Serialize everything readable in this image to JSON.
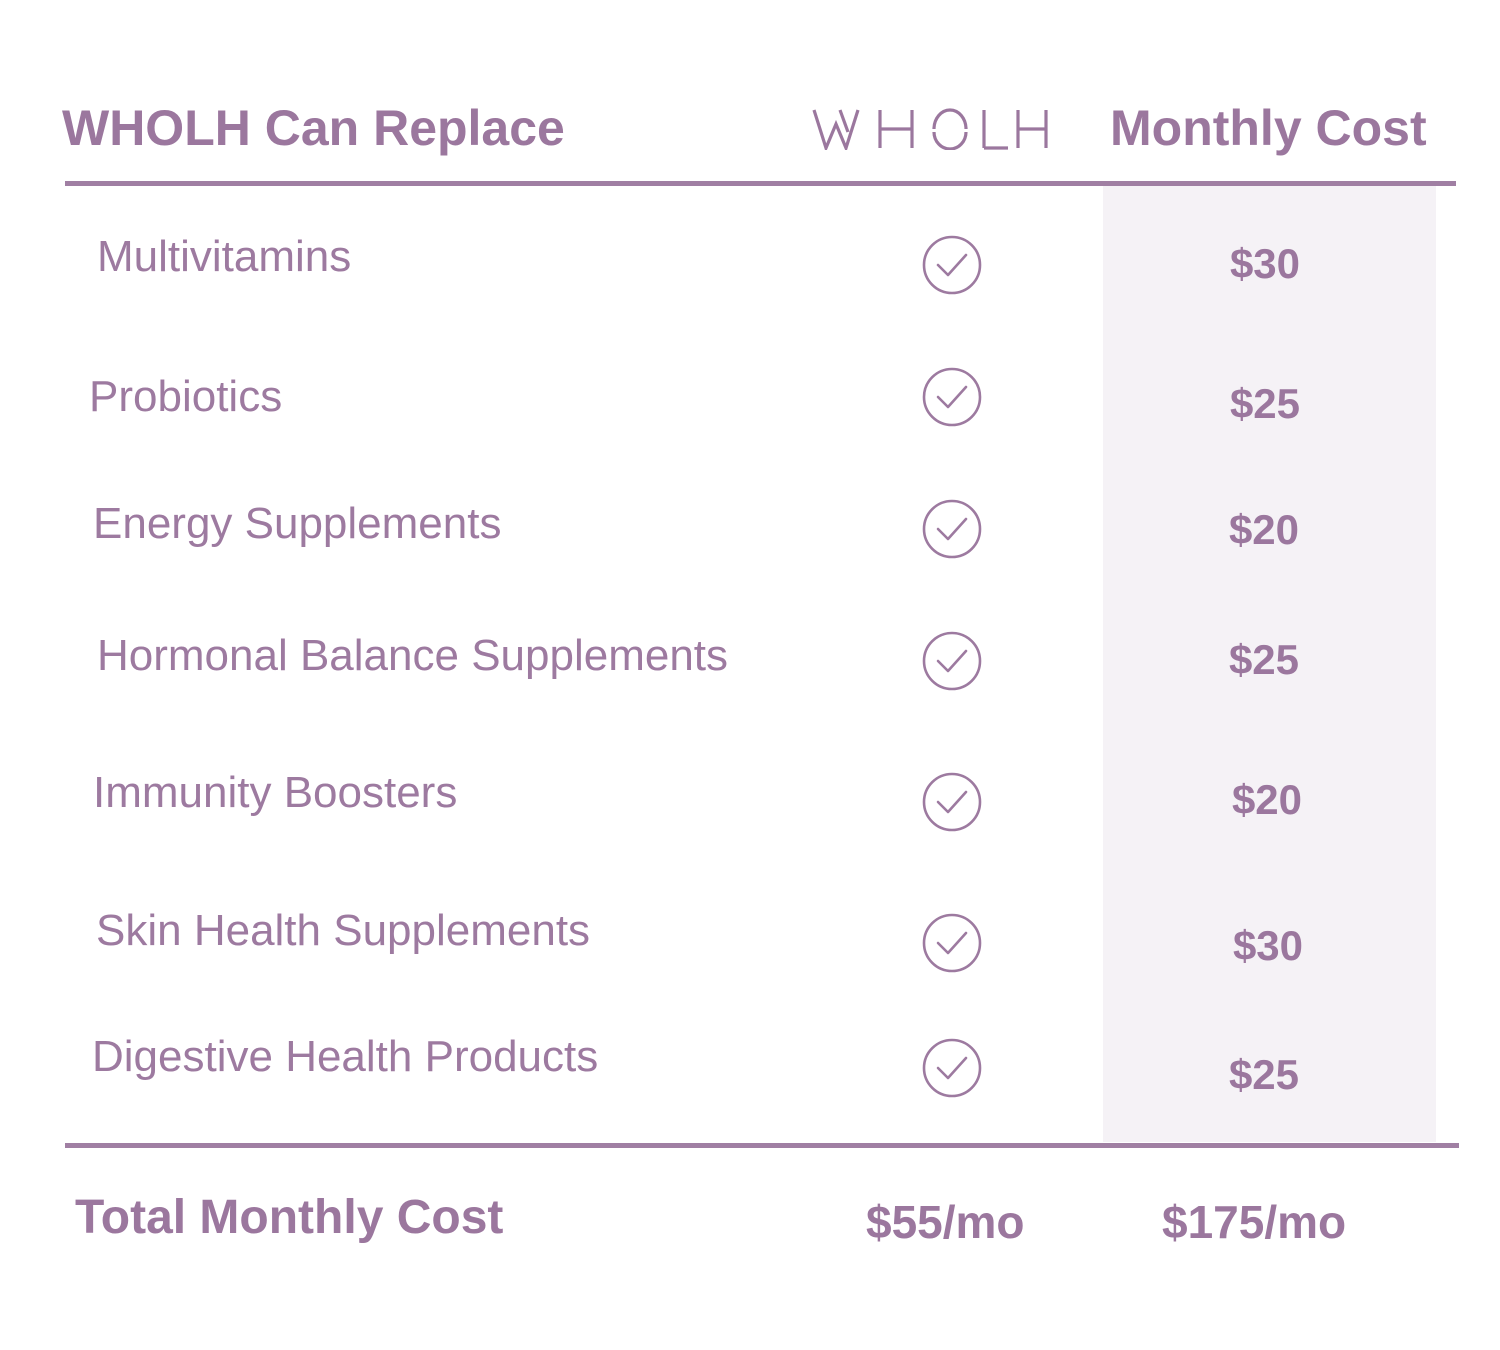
{
  "header": {
    "replace_title": "WHOLH Can Replace",
    "brand_logo": "WHOLH",
    "cost_title": "Monthly Cost"
  },
  "rows": [
    {
      "label": "Multivitamins",
      "included_icon": "check-circle-icon",
      "price": "$30"
    },
    {
      "label": "Probiotics",
      "included_icon": "check-circle-icon",
      "price": "$25"
    },
    {
      "label": "Energy Supplements",
      "included_icon": "check-circle-icon",
      "price": "$20"
    },
    {
      "label": "Hormonal Balance Supplements",
      "included_icon": "check-circle-icon",
      "price": "$25"
    },
    {
      "label": "Immunity Boosters",
      "included_icon": "check-circle-icon",
      "price": "$20"
    },
    {
      "label": "Skin Health Supplements",
      "included_icon": "check-circle-icon",
      "price": "$30"
    },
    {
      "label": "Digestive Health Products",
      "included_icon": "check-circle-icon",
      "price": "$25"
    }
  ],
  "footer": {
    "total_label": "Total Monthly Cost",
    "wholh_total": "$55/mo",
    "separate_total": "$175/mo"
  },
  "colors": {
    "text": "#9d7aa0",
    "rule": "#a07fa3",
    "cost_band": "#f5f2f6",
    "background": "#ffffff"
  }
}
